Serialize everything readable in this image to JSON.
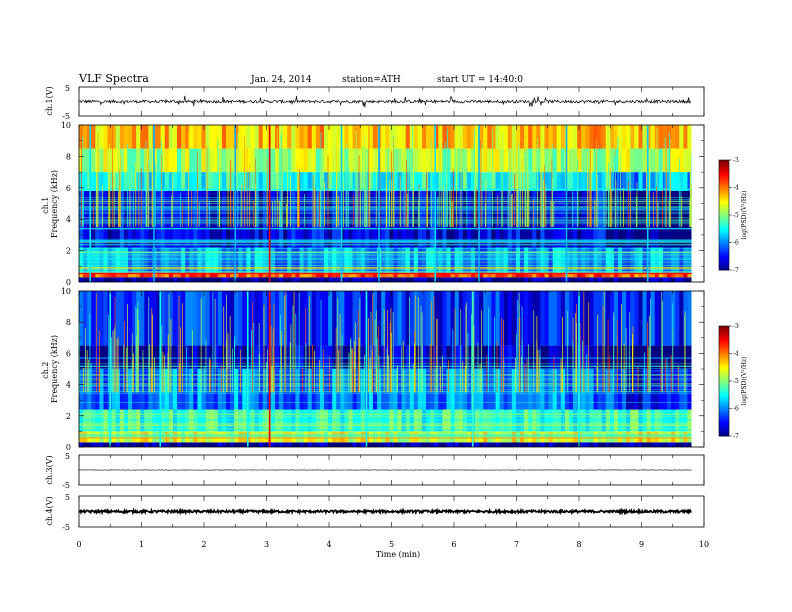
{
  "header": {
    "title": "VLF  Spectra",
    "date": "Jan. 24, 2014",
    "station": "station=ATH",
    "start": "start  UT  =   14:40:0"
  },
  "chart_data": [
    {
      "type": "line",
      "panel": "ch1-waveform",
      "ylabel": "ch.1(V)",
      "ylim": [
        -5,
        5
      ],
      "yticks": [
        "5",
        "-5"
      ],
      "x_range_min": [
        0,
        9.8
      ],
      "description_values": {
        "baseline_V": 0.0,
        "typical_amplitude_V": 0.5,
        "max_spike_V": 2.0
      }
    },
    {
      "type": "heatmap",
      "panel": "ch1-spectrogram",
      "ylabel": "ch.1\nFrequency  (kHz)",
      "ylim": [
        0,
        10
      ],
      "yticks": [
        "0",
        "2",
        "4",
        "6",
        "8",
        "10"
      ],
      "x_range_min": [
        0,
        9.8
      ],
      "colorbar": {
        "label": "log(PSD)(V²/Hz)",
        "range": [
          -7,
          -3
        ],
        "ticks": [
          "-3",
          "-4",
          "-5",
          "-6",
          "-7"
        ]
      },
      "bands": [
        {
          "from_kHz": 0.0,
          "to_kHz": 0.3,
          "logPSD": -6.9
        },
        {
          "from_kHz": 0.3,
          "to_kHz": 0.6,
          "logPSD": -3.8
        },
        {
          "from_kHz": 0.6,
          "to_kHz": 2.2,
          "logPSD": -5.9
        },
        {
          "from_kHz": 2.2,
          "to_kHz": 5.8,
          "logPSD": -6.6
        },
        {
          "from_kHz": 5.8,
          "to_kHz": 7.0,
          "logPSD": -5.4
        },
        {
          "from_kHz": 7.0,
          "to_kHz": 8.5,
          "logPSD": -4.8
        },
        {
          "from_kHz": 8.5,
          "to_kHz": 10.0,
          "logPSD": -4.3
        }
      ],
      "lines": [
        {
          "kHz": 0.55,
          "logPSD": -3.5
        },
        {
          "kHz": 0.9,
          "logPSD": -4.4
        },
        {
          "kHz": 1.9,
          "logPSD": -5.0
        },
        {
          "kHz": 2.6,
          "logPSD": -5.6
        },
        {
          "kHz": 3.4,
          "logPSD": -5.7
        },
        {
          "kHz": 4.6,
          "logPSD": -5.8
        },
        {
          "kHz": 5.9,
          "logPSD": -5.5
        }
      ],
      "events": [
        {
          "t_min": 3.05,
          "logPSD": -3.4
        },
        {
          "t_min": 0.18,
          "logPSD": -5.6
        },
        {
          "t_min": 1.2,
          "logPSD": -5.8
        },
        {
          "t_min": 2.5,
          "logPSD": -5.8
        },
        {
          "t_min": 4.2,
          "logPSD": -5.7
        },
        {
          "t_min": 4.8,
          "logPSD": -5.8
        },
        {
          "t_min": 5.7,
          "logPSD": -5.6
        },
        {
          "t_min": 6.4,
          "logPSD": -5.8
        },
        {
          "t_min": 7.8,
          "logPSD": -5.8
        },
        {
          "t_min": 9.1,
          "logPSD": -5.7
        }
      ],
      "change_at_min": 8.5
    },
    {
      "type": "heatmap",
      "panel": "ch2-spectrogram",
      "ylabel": "ch.2\nFrequency  (kHz)",
      "ylim": [
        0,
        10
      ],
      "yticks": [
        "0",
        "2",
        "4",
        "6",
        "8",
        "10"
      ],
      "x_range_min": [
        0,
        9.8
      ],
      "colorbar": {
        "label": "log(PSD)(V²/Hz)",
        "range": [
          -7,
          -3
        ],
        "ticks": [
          "-3",
          "-4",
          "-5",
          "-6",
          "-7"
        ]
      },
      "bands": [
        {
          "from_kHz": 0.0,
          "to_kHz": 0.3,
          "logPSD": -6.9
        },
        {
          "from_kHz": 0.3,
          "to_kHz": 1.0,
          "logPSD": -4.6
        },
        {
          "from_kHz": 1.0,
          "to_kHz": 2.4,
          "logPSD": -5.3
        },
        {
          "from_kHz": 2.4,
          "to_kHz": 5.0,
          "logPSD": -6.0
        },
        {
          "from_kHz": 5.0,
          "to_kHz": 6.5,
          "logPSD": -6.8
        },
        {
          "from_kHz": 6.5,
          "to_kHz": 10.0,
          "logPSD": -6.4
        }
      ],
      "lines": [
        {
          "kHz": 0.6,
          "logPSD": -4.0
        },
        {
          "kHz": 1.4,
          "logPSD": -4.8
        },
        {
          "kHz": 2.1,
          "logPSD": -5.0
        },
        {
          "kHz": 5.7,
          "logPSD": -6.0
        }
      ],
      "events": [
        {
          "t_min": 3.05,
          "logPSD": -3.4
        },
        {
          "t_min": 0.5,
          "logPSD": -5.4
        },
        {
          "t_min": 1.3,
          "logPSD": -5.5
        },
        {
          "t_min": 2.7,
          "logPSD": -5.4
        },
        {
          "t_min": 4.6,
          "logPSD": -5.4
        },
        {
          "t_min": 6.3,
          "logPSD": -5.3
        },
        {
          "t_min": 8.0,
          "logPSD": -5.4
        }
      ],
      "change_at_min": 8.5
    },
    {
      "type": "line",
      "panel": "ch3-waveform",
      "ylabel": "ch.3(V)",
      "ylim": [
        -5,
        5
      ],
      "yticks": [
        "5",
        "-5"
      ],
      "x_range_min": [
        0,
        9.8
      ],
      "description_values": {
        "baseline_V": 0.0,
        "typical_amplitude_V": 0.05
      }
    },
    {
      "type": "line",
      "panel": "ch4-waveform",
      "ylabel": "ch.4(V)",
      "ylim": [
        -5,
        5
      ],
      "yticks": [
        "5",
        "-5"
      ],
      "x_range_min": [
        0,
        9.8
      ],
      "description_values": {
        "baseline_V": 0.0,
        "typical_amplitude_V": 0.4
      }
    }
  ],
  "x_axis": {
    "label": "Time  (min)",
    "range": [
      0,
      10
    ],
    "ticks": [
      "0",
      "1",
      "2",
      "3",
      "4",
      "5",
      "6",
      "7",
      "8",
      "9",
      "10"
    ]
  }
}
